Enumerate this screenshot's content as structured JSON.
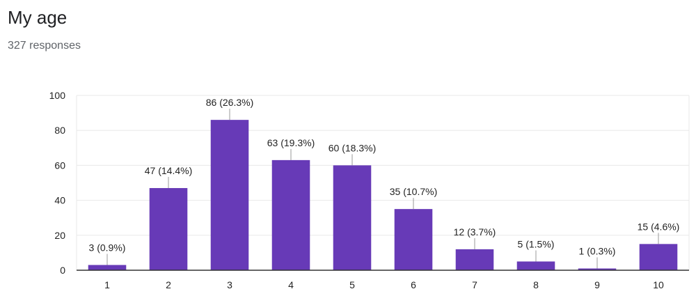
{
  "header": {
    "title": "My age",
    "responses": "327 responses"
  },
  "colors": {
    "bar": "#673ab7",
    "grid": "#e8e8e8",
    "axis": "#333333",
    "leader": "#999999"
  },
  "chart_data": {
    "type": "bar",
    "categories": [
      "1",
      "2",
      "3",
      "4",
      "5",
      "6",
      "7",
      "8",
      "9",
      "10"
    ],
    "values": [
      3,
      47,
      86,
      63,
      60,
      35,
      12,
      5,
      1,
      15
    ],
    "data_labels": [
      "3 (0.9%)",
      "47 (14.4%)",
      "86 (26.3%)",
      "63 (19.3%)",
      "60 (18.3%)",
      "35 (10.7%)",
      "12 (3.7%)",
      "5 (1.5%)",
      "1 (0.3%)",
      "15 (4.6%)"
    ],
    "yticks": [
      0,
      20,
      40,
      60,
      80,
      100
    ],
    "ylim": [
      0,
      100
    ],
    "grid": true,
    "legend": "none"
  }
}
